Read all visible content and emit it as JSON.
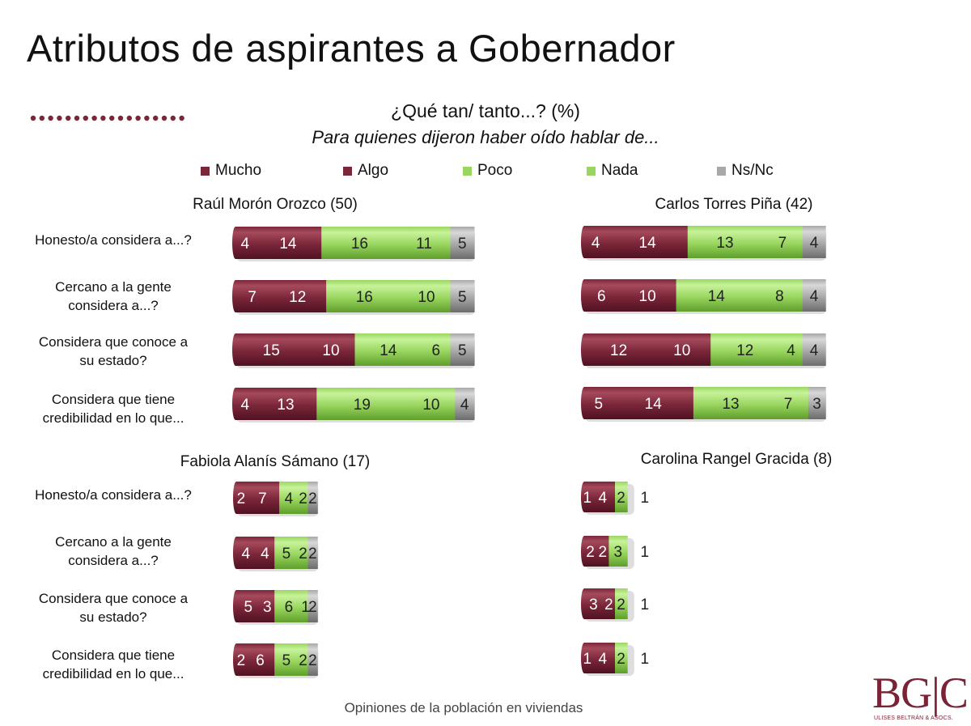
{
  "title": "Atributos de aspirantes a Gobernador",
  "subtitle": "¿Qué tan/ tanto...? (%)",
  "subtitle2": "Para quienes dijeron haber oído hablar  de...",
  "footer": "Opiniones de la población en viviendas",
  "logo": {
    "mark": "BG|C",
    "tagline": "ULISES BELTRÁN & ASOCS."
  },
  "colors": {
    "mucho": "#7b2639",
    "algo": "#7b2639",
    "poco": "#99d65f",
    "nada": "#99d65f",
    "nsnc": "#a8a8a8",
    "dots": "#7b2639"
  },
  "legend": [
    "Mucho",
    "Algo",
    "Poco",
    "Nada",
    "Ns/Nc"
  ],
  "row_labels": [
    [
      "Honesto/a considera a...?"
    ],
    [
      "Cercano a la gente",
      "considera a...?"
    ],
    [
      "Considera que conoce a",
      "su estado?"
    ],
    [
      "Considera que tiene",
      "credibilidad en lo que..."
    ]
  ],
  "chart_data": [
    {
      "type": "bar",
      "stacked": true,
      "orientation": "horizontal",
      "title": "Raúl Morón Orozco (50)",
      "categories": [
        "Honesto/a considera a...?",
        "Cercano a la gente considera a...?",
        "Considera que conoce a su estado?",
        "Considera que tiene credibilidad en lo que..."
      ],
      "series": [
        {
          "name": "Mucho",
          "values": [
            4,
            7,
            15,
            4
          ]
        },
        {
          "name": "Algo",
          "values": [
            14,
            12,
            10,
            13
          ]
        },
        {
          "name": "Poco",
          "values": [
            16,
            16,
            14,
            19
          ]
        },
        {
          "name": "Nada",
          "values": [
            11,
            10,
            6,
            10
          ]
        },
        {
          "name": "Ns/Nc",
          "values": [
            5,
            5,
            5,
            4
          ]
        }
      ]
    },
    {
      "type": "bar",
      "stacked": true,
      "orientation": "horizontal",
      "title": "Carlos Torres Piña (42)",
      "categories": [
        "Honesto/a considera a...?",
        "Cercano a la gente considera a...?",
        "Considera que conoce a su estado?",
        "Considera que tiene credibilidad en lo que..."
      ],
      "series": [
        {
          "name": "Mucho",
          "values": [
            4,
            6,
            12,
            5
          ]
        },
        {
          "name": "Algo",
          "values": [
            14,
            10,
            10,
            14
          ]
        },
        {
          "name": "Poco",
          "values": [
            13,
            14,
            12,
            13
          ]
        },
        {
          "name": "Nada",
          "values": [
            7,
            8,
            4,
            7
          ]
        },
        {
          "name": "Ns/Nc",
          "values": [
            4,
            4,
            4,
            3
          ]
        }
      ]
    },
    {
      "type": "bar",
      "stacked": true,
      "orientation": "horizontal",
      "title": "Fabiola Alanís Sámano (17)",
      "categories": [
        "Honesto/a considera a...?",
        "Cercano a la gente considera a...?",
        "Considera que conoce a su estado?",
        "Considera que tiene credibilidad en lo que..."
      ],
      "series": [
        {
          "name": "Mucho",
          "values": [
            2,
            4,
            5,
            2
          ]
        },
        {
          "name": "Algo",
          "values": [
            7,
            4,
            3,
            6
          ]
        },
        {
          "name": "Poco",
          "values": [
            4,
            5,
            6,
            5
          ]
        },
        {
          "name": "Nada",
          "values": [
            2,
            2,
            1,
            2
          ]
        },
        {
          "name": "Ns/Nc",
          "values": [
            2,
            2,
            2,
            2
          ]
        }
      ]
    },
    {
      "type": "bar",
      "stacked": true,
      "orientation": "horizontal",
      "title": "Carolina Rangel Gracida (8)",
      "categories": [
        "Honesto/a considera a...?",
        "Cercano a la gente considera a...?",
        "Considera que conoce a su estado?",
        "Considera que tiene credibilidad en lo que..."
      ],
      "series": [
        {
          "name": "Mucho",
          "values": [
            1,
            2,
            3,
            1
          ]
        },
        {
          "name": "Algo",
          "values": [
            4,
            2,
            2,
            4
          ]
        },
        {
          "name": "Poco",
          "values": [
            2,
            3,
            2,
            2
          ]
        },
        {
          "name": "Nada",
          "values": [
            0,
            0,
            0,
            0
          ]
        },
        {
          "name": "Ns/Nc",
          "values": [
            1,
            1,
            1,
            1
          ]
        }
      ]
    }
  ]
}
